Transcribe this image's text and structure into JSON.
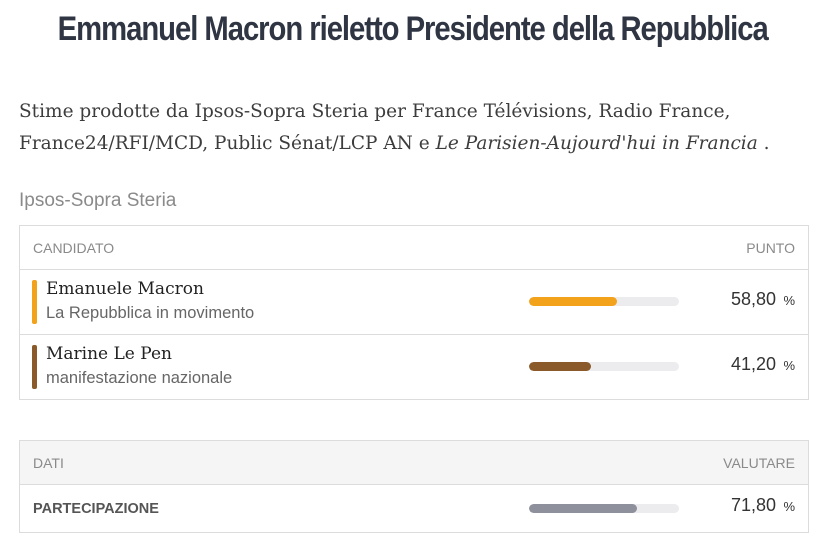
{
  "headline": "Emmanuel Macron rieletto Presidente della Repubblica",
  "description": {
    "text": "Stime prodotte da Ipsos-Sopra Steria per France Télévisions, Radio France, France24/RFI/MCD, Public Sénat/LCP AN e ",
    "italic": "Le Parisien-Aujourd'hui in Francia",
    "end": " ."
  },
  "source": "Ipsos-Sopra Steria",
  "results": {
    "col_candidate": "CANDIDATO",
    "col_points": "PUNTO",
    "rows": [
      {
        "name": "Emanuele Macron",
        "party": "La Repubblica in movimento",
        "value": "58,80",
        "unit": "%",
        "fraction": 0.588,
        "color": "#f2a21b"
      },
      {
        "name": "Marine Le Pen",
        "party": "manifestazione nazionale",
        "value": "41,20",
        "unit": "%",
        "fraction": 0.412,
        "color": "#8b5a2b"
      }
    ]
  },
  "stats": {
    "col_data": "DATI",
    "col_value": "VALUTARE",
    "rows": [
      {
        "label": "PARTECIPAZIONE",
        "value": "71,80",
        "unit": "%",
        "fraction": 0.718,
        "color": "#8e919c"
      }
    ]
  }
}
